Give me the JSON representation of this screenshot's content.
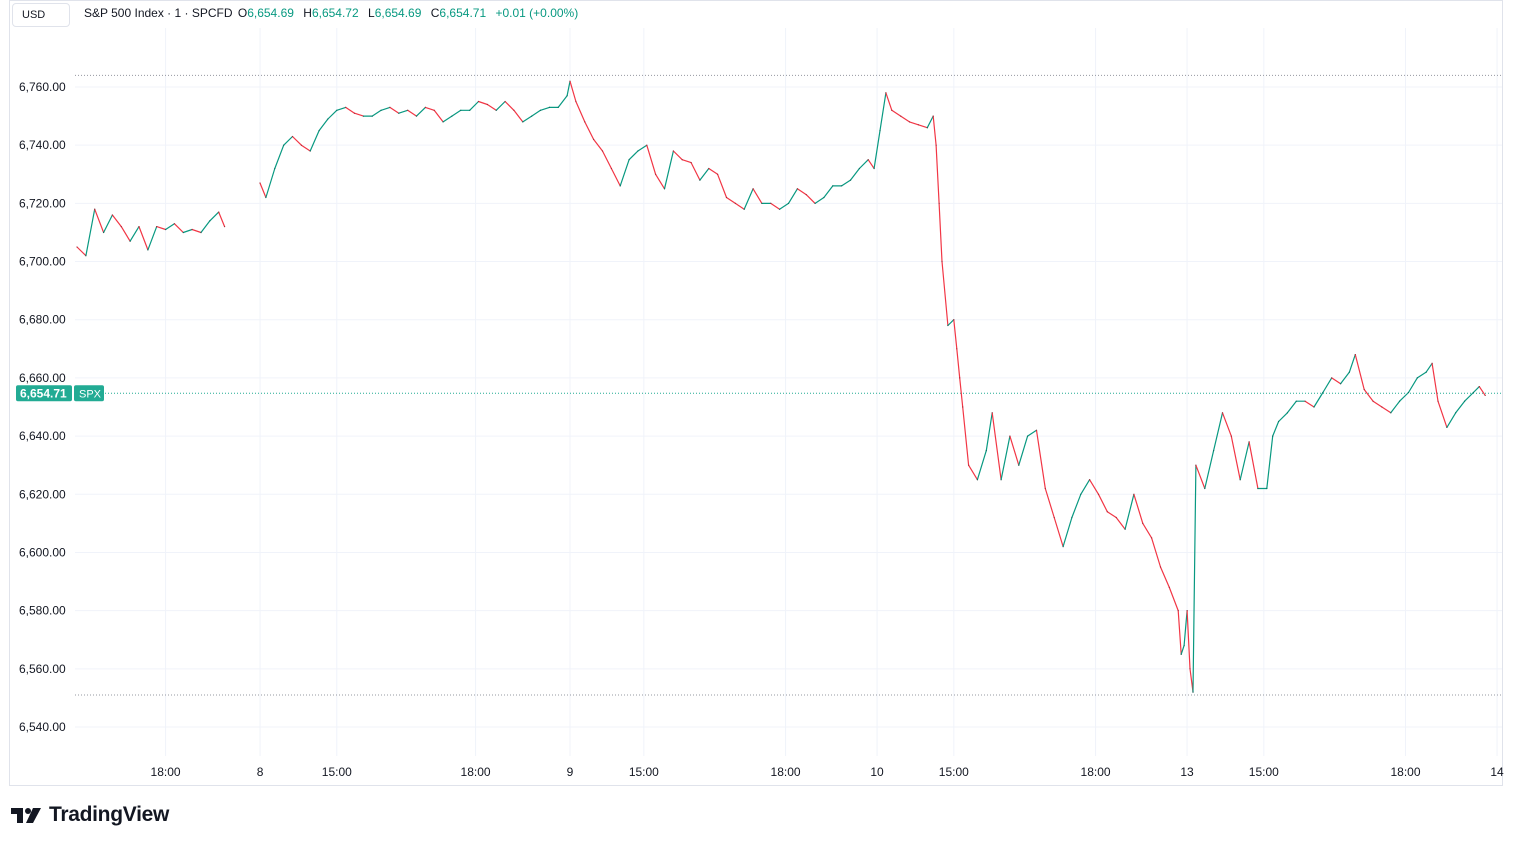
{
  "header": {
    "currency": "USD",
    "title": "S&P 500 Index · 1 · SPCFD",
    "ohlc": [
      {
        "label": "O",
        "value": "6,654.69"
      },
      {
        "label": "H",
        "value": "6,654.72"
      },
      {
        "label": "L",
        "value": "6,654.69"
      },
      {
        "label": "C",
        "value": "6,654.71"
      }
    ],
    "change": "+0.01 (+0.00%)"
  },
  "price_tag": {
    "value": "6,654.71",
    "symbol": "SPX"
  },
  "brand": {
    "name": "TradingView"
  },
  "colors": {
    "up": "#089981",
    "down": "#f23645",
    "grid": "#f0f3fa",
    "text": "#131722",
    "accent": "#22ab94"
  },
  "chart_data": {
    "type": "line",
    "title": "S&P 500 Index · 1 · SPCFD",
    "xlabel": "",
    "ylabel": "",
    "ylim": [
      6536,
      6772
    ],
    "y_ticks": [
      6540,
      6560,
      6580,
      6600,
      6620,
      6640,
      6660,
      6680,
      6700,
      6720,
      6740,
      6760
    ],
    "y_tick_labels": [
      "6,540.00",
      "6,560.00",
      "6,580.00",
      "6,600.00",
      "6,620.00",
      "6,640.00",
      "6,660.00",
      "6,680.00",
      "6,700.00",
      "6,720.00",
      "6,740.00",
      "6,760.00"
    ],
    "x_ticks": [
      {
        "label": "18:00",
        "t": 30
      },
      {
        "label": "8",
        "t": 62
      },
      {
        "label": "15:00",
        "t": 88
      },
      {
        "label": "18:00",
        "t": 135
      },
      {
        "label": "9",
        "t": 167
      },
      {
        "label": "15:00",
        "t": 192
      },
      {
        "label": "18:00",
        "t": 240
      },
      {
        "label": "10",
        "t": 271
      },
      {
        "label": "15:00",
        "t": 297
      },
      {
        "label": "18:00",
        "t": 345
      },
      {
        "label": "13",
        "t": 376
      },
      {
        "label": "15:00",
        "t": 402
      },
      {
        "label": "18:00",
        "t": 450
      },
      {
        "label": "14",
        "t": 481
      }
    ],
    "last_price": 6654.71,
    "session_high": 6764,
    "session_low": 6551,
    "grid": true,
    "series": [
      {
        "points": [
          [
            0,
            6705
          ],
          [
            3,
            6702
          ],
          [
            6,
            6718
          ],
          [
            9,
            6710
          ],
          [
            12,
            6716
          ],
          [
            15,
            6712
          ],
          [
            18,
            6707
          ],
          [
            21,
            6712
          ],
          [
            24,
            6704
          ],
          [
            27,
            6712
          ],
          [
            30,
            6711
          ],
          [
            33,
            6713
          ],
          [
            36,
            6710
          ],
          [
            39,
            6711
          ],
          [
            42,
            6710
          ],
          [
            45,
            6714
          ],
          [
            48,
            6717
          ],
          [
            50,
            6712
          ],
          [
            62,
            6727
          ],
          [
            64,
            6722
          ],
          [
            67,
            6732
          ],
          [
            70,
            6740
          ],
          [
            73,
            6743
          ],
          [
            76,
            6740
          ],
          [
            79,
            6738
          ],
          [
            82,
            6745
          ],
          [
            85,
            6749
          ],
          [
            88,
            6752
          ],
          [
            91,
            6753
          ],
          [
            94,
            6751
          ],
          [
            97,
            6750
          ],
          [
            100,
            6750
          ],
          [
            103,
            6752
          ],
          [
            106,
            6753
          ],
          [
            109,
            6751
          ],
          [
            112,
            6752
          ],
          [
            115,
            6750
          ],
          [
            118,
            6753
          ],
          [
            121,
            6752
          ],
          [
            124,
            6748
          ],
          [
            127,
            6750
          ],
          [
            130,
            6752
          ],
          [
            133,
            6752
          ],
          [
            136,
            6755
          ],
          [
            139,
            6754
          ],
          [
            142,
            6752
          ],
          [
            145,
            6755
          ],
          [
            148,
            6752
          ],
          [
            151,
            6748
          ],
          [
            154,
            6750
          ],
          [
            157,
            6752
          ],
          [
            160,
            6753
          ],
          [
            163,
            6753
          ],
          [
            166,
            6757
          ],
          [
            167,
            6762
          ],
          [
            169,
            6755
          ],
          [
            172,
            6748
          ],
          [
            175,
            6742
          ],
          [
            178,
            6738
          ],
          [
            181,
            6732
          ],
          [
            184,
            6726
          ],
          [
            187,
            6735
          ],
          [
            190,
            6738
          ],
          [
            193,
            6740
          ],
          [
            196,
            6730
          ],
          [
            199,
            6725
          ],
          [
            202,
            6738
          ],
          [
            205,
            6735
          ],
          [
            208,
            6734
          ],
          [
            211,
            6728
          ],
          [
            214,
            6732
          ],
          [
            217,
            6730
          ],
          [
            220,
            6722
          ],
          [
            223,
            6720
          ],
          [
            226,
            6718
          ],
          [
            229,
            6725
          ],
          [
            232,
            6720
          ],
          [
            235,
            6720
          ],
          [
            238,
            6718
          ],
          [
            241,
            6720
          ],
          [
            244,
            6725
          ],
          [
            247,
            6723
          ],
          [
            250,
            6720
          ],
          [
            253,
            6722
          ],
          [
            256,
            6726
          ],
          [
            259,
            6726
          ],
          [
            262,
            6728
          ],
          [
            265,
            6732
          ],
          [
            268,
            6735
          ],
          [
            270,
            6732
          ],
          [
            272,
            6745
          ],
          [
            274,
            6758
          ],
          [
            276,
            6752
          ],
          [
            279,
            6750
          ],
          [
            282,
            6748
          ],
          [
            285,
            6747
          ],
          [
            288,
            6746
          ],
          [
            290,
            6750
          ],
          [
            291,
            6740
          ],
          [
            292,
            6720
          ],
          [
            293,
            6700
          ],
          [
            295,
            6678
          ],
          [
            297,
            6680
          ],
          [
            298,
            6670
          ],
          [
            299,
            6660
          ],
          [
            300,
            6650
          ],
          [
            302,
            6630
          ],
          [
            305,
            6625
          ],
          [
            308,
            6635
          ],
          [
            310,
            6648
          ],
          [
            313,
            6625
          ],
          [
            316,
            6640
          ],
          [
            319,
            6630
          ],
          [
            322,
            6640
          ],
          [
            325,
            6642
          ],
          [
            328,
            6622
          ],
          [
            331,
            6612
          ],
          [
            334,
            6602
          ],
          [
            337,
            6612
          ],
          [
            340,
            6620
          ],
          [
            343,
            6625
          ],
          [
            346,
            6620
          ],
          [
            349,
            6614
          ],
          [
            352,
            6612
          ],
          [
            355,
            6608
          ],
          [
            358,
            6620
          ],
          [
            361,
            6610
          ],
          [
            364,
            6605
          ],
          [
            367,
            6595
          ],
          [
            370,
            6588
          ],
          [
            373,
            6580
          ],
          [
            374,
            6565
          ],
          [
            375,
            6568
          ],
          [
            376,
            6580
          ],
          [
            377,
            6560
          ],
          [
            378,
            6552
          ],
          [
            379,
            6630
          ],
          [
            382,
            6622
          ],
          [
            385,
            6635
          ],
          [
            388,
            6648
          ],
          [
            391,
            6640
          ],
          [
            394,
            6625
          ],
          [
            397,
            6638
          ],
          [
            400,
            6622
          ],
          [
            403,
            6622
          ],
          [
            405,
            6640
          ],
          [
            407,
            6645
          ],
          [
            410,
            6648
          ],
          [
            413,
            6652
          ],
          [
            416,
            6652
          ],
          [
            419,
            6650
          ],
          [
            422,
            6655
          ],
          [
            425,
            6660
          ],
          [
            428,
            6658
          ],
          [
            431,
            6662
          ],
          [
            433,
            6668
          ],
          [
            436,
            6656
          ],
          [
            439,
            6652
          ],
          [
            442,
            6650
          ],
          [
            445,
            6648
          ],
          [
            448,
            6652
          ],
          [
            451,
            6655
          ],
          [
            454,
            6660
          ],
          [
            457,
            6662
          ],
          [
            459,
            6665
          ],
          [
            461,
            6652
          ],
          [
            464,
            6643
          ],
          [
            467,
            6648
          ],
          [
            470,
            6652
          ],
          [
            473,
            6655
          ],
          [
            475,
            6657
          ],
          [
            477,
            6654
          ]
        ]
      }
    ]
  }
}
